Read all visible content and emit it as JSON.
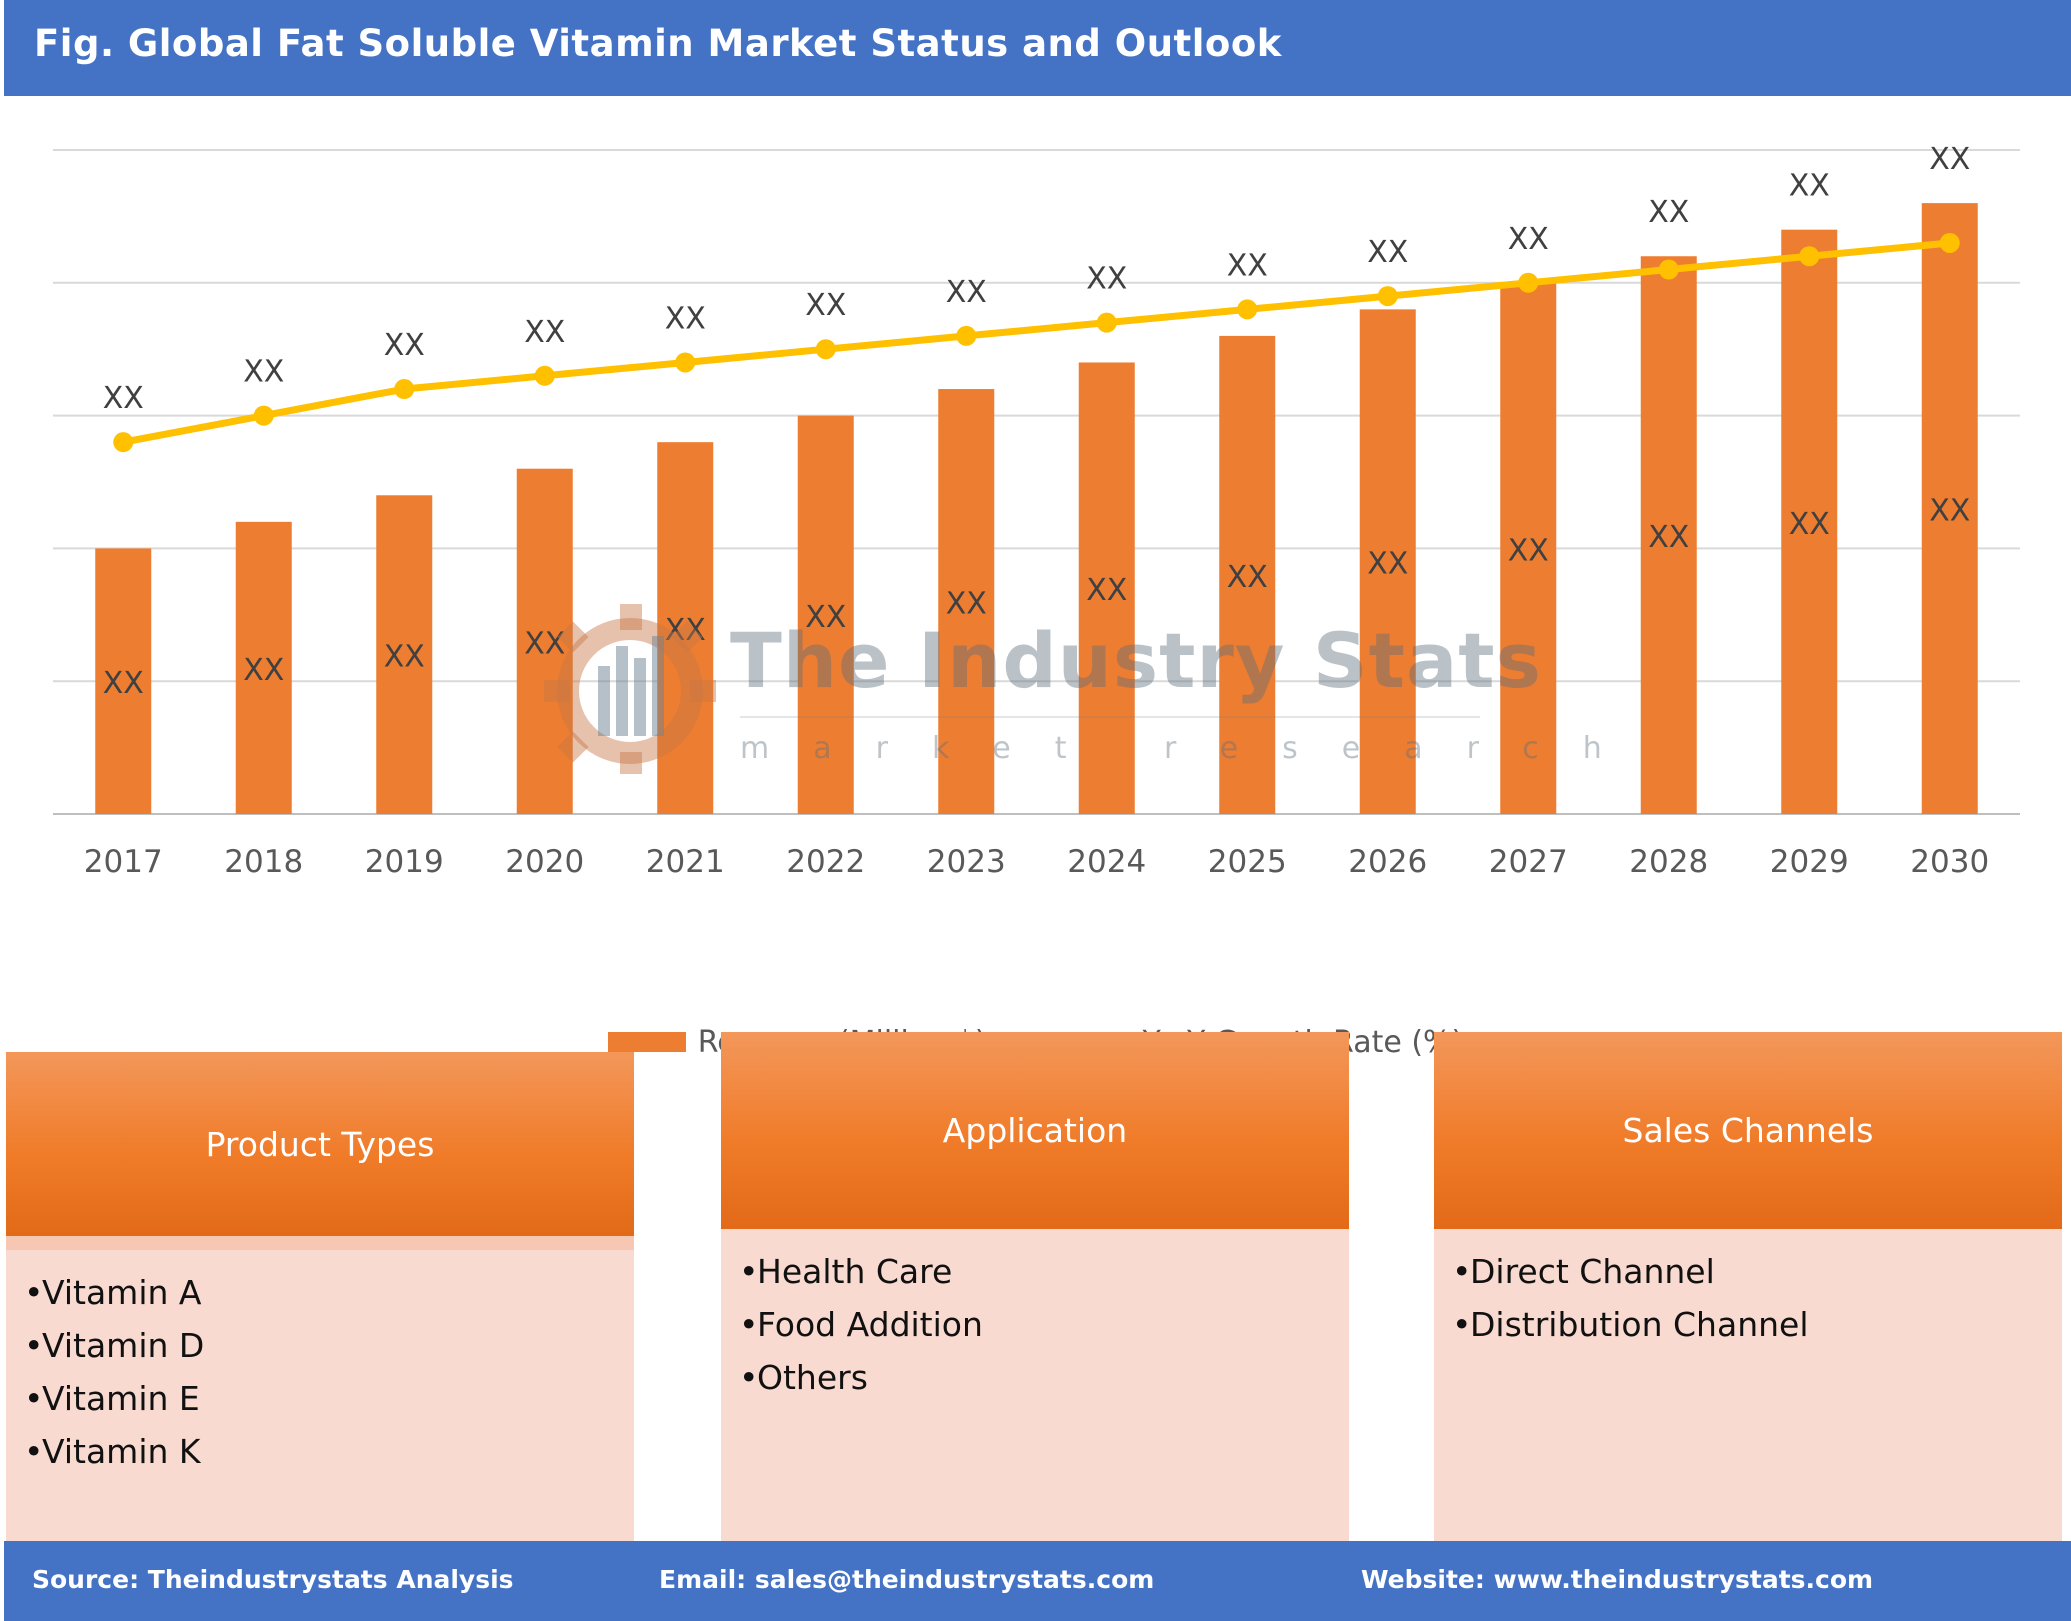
{
  "header": {
    "title": "Fig. Global Fat Soluble Vitamin Market Status and Outlook"
  },
  "chart_data": {
    "type": "bar",
    "categories": [
      "2017",
      "2018",
      "2019",
      "2020",
      "2021",
      "2022",
      "2023",
      "2024",
      "2025",
      "2026",
      "2027",
      "2028",
      "2029",
      "2030"
    ],
    "series": [
      {
        "name": "Revenue (Million $)",
        "type": "bar",
        "color": "#ed7d31",
        "values": [
          200,
          220,
          240,
          260,
          280,
          300,
          320,
          340,
          360,
          380,
          400,
          420,
          440,
          460
        ],
        "data_labels": [
          "XX",
          "XX",
          "XX",
          "XX",
          "XX",
          "XX",
          "XX",
          "XX",
          "XX",
          "XX",
          "XX",
          "XX",
          "XX",
          "XX"
        ]
      },
      {
        "name": "Y-oY Growth Rate (%)",
        "type": "line",
        "color": "#ffc000",
        "values": [
          280,
          300,
          320,
          330,
          340,
          350,
          360,
          370,
          380,
          390,
          400,
          410,
          420,
          430
        ],
        "data_labels": [
          "XX",
          "XX",
          "XX",
          "XX",
          "XX",
          "XX",
          "XX",
          "XX",
          "XX",
          "XX",
          "XX",
          "XX",
          "XX",
          "XX"
        ]
      }
    ],
    "ylim": [
      0,
      500
    ],
    "grid": true,
    "legend": "bottom"
  },
  "watermark": {
    "title": "The Industry Stats",
    "subtitle": "market research"
  },
  "panels": [
    {
      "title": "Product Types",
      "items": [
        "Vitamin A",
        "Vitamin D",
        "Vitamin E",
        "Vitamin K"
      ]
    },
    {
      "title": "Application",
      "items": [
        "Health Care",
        "Food Addition",
        "Others"
      ]
    },
    {
      "title": "Sales Channels",
      "items": [
        "Direct Channel",
        "Distribution Channel"
      ]
    }
  ],
  "footer": {
    "source": "Source: Theindustrystats Analysis",
    "email": "Email: sales@theindustrystats.com",
    "website": "Website: www.theindustrystats.com"
  }
}
